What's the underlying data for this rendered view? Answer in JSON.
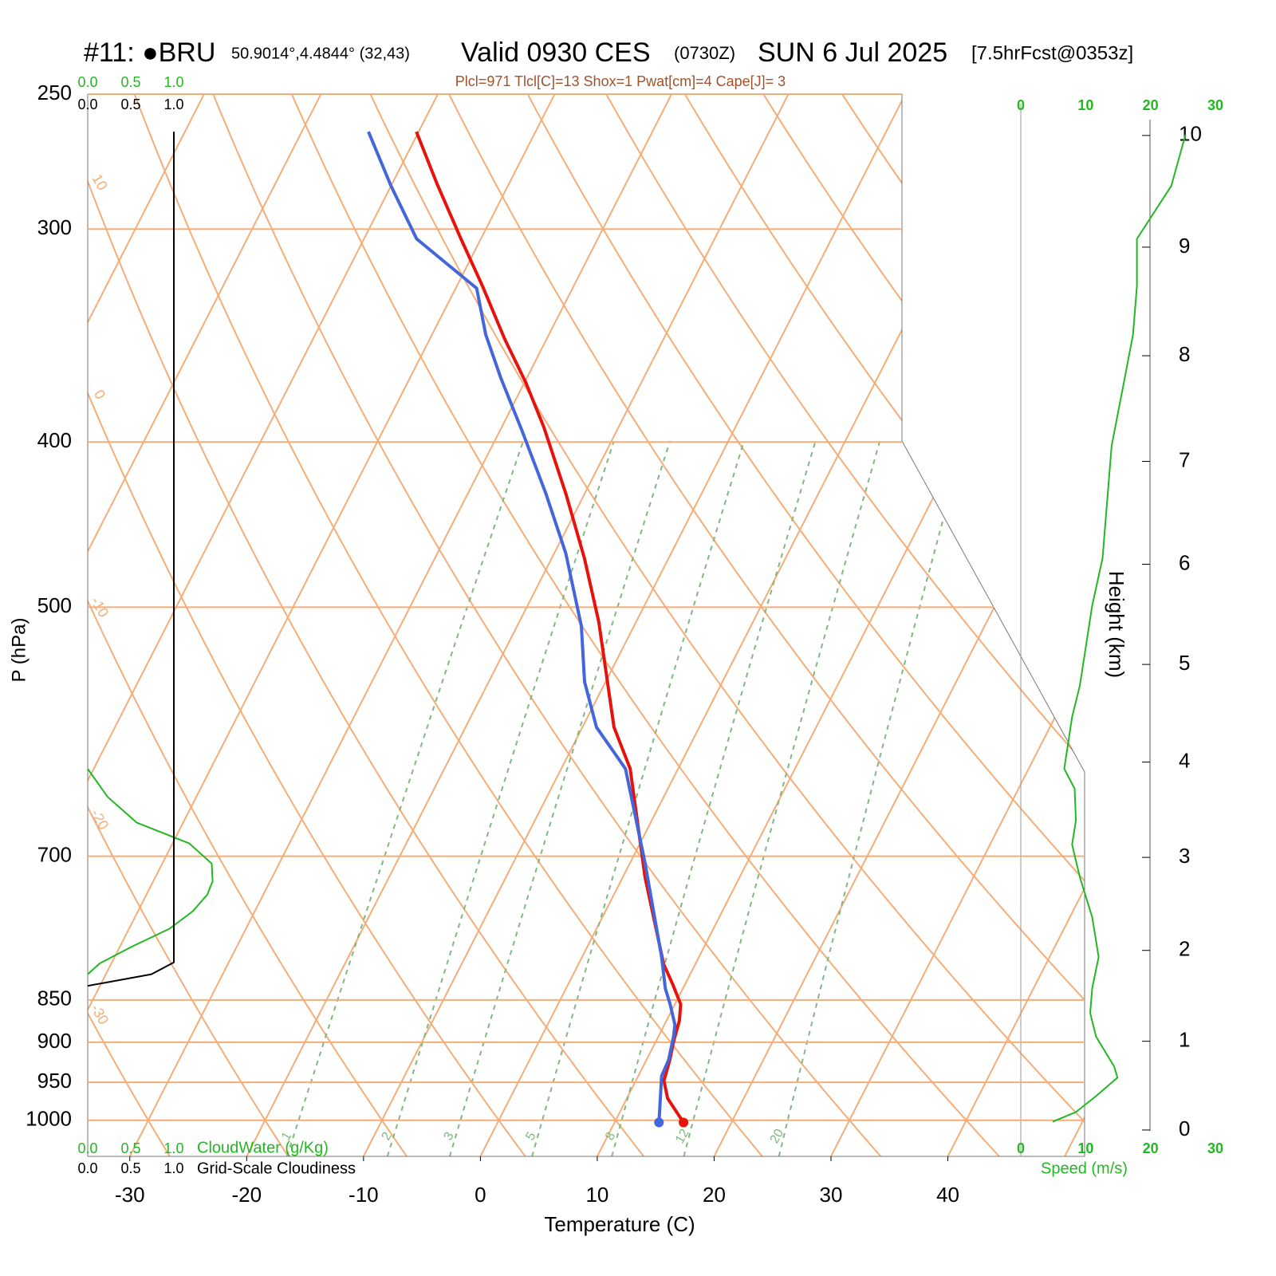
{
  "chart_data": {
    "type": "skewt",
    "title": {
      "station": "#11: ●BRU",
      "location": "50.9014°,4.4844° (32,43)",
      "valid": "Valid 0930 CES",
      "utc": "(0730Z)",
      "date": "SUN 6 Jul 2025",
      "forecast": "[7.5hrFcst@0353z]"
    },
    "subtitle": "Plcl=971 Tlcl[C]=13 Shox=1 Pwat[cm]=4 Cape[J]= 3",
    "x_label": "Temperature (C)",
    "y_label": "P (hPa)",
    "height_label": "Height (km)",
    "speed_label": "Speed (m/s)",
    "cloud_water_label": "CloudWater (g/Kg)",
    "cloudiness_label": "Grid-Scale Cloudiness",
    "xlim": [
      -33.6,
      51.7
    ],
    "xticks": [
      -30,
      -20,
      -10,
      0,
      10,
      20,
      30,
      40
    ],
    "ylim": [
      1050,
      250
    ],
    "yticks": [
      250,
      300,
      400,
      500,
      700,
      850,
      900,
      950,
      1000
    ],
    "log_y": true,
    "height_ticks": [
      0,
      1,
      2,
      3,
      4,
      5,
      6,
      7,
      8,
      9,
      10
    ],
    "speed_lim": [
      0,
      30
    ],
    "speed_ticks": [
      0,
      10,
      20,
      30
    ],
    "cloud_lim": [
      0,
      1
    ],
    "cloud_ticks": [
      {
        "value": 0,
        "label": "0.0"
      },
      {
        "value": 0.5,
        "label": "0.5"
      },
      {
        "value": 1,
        "label": "1.0"
      }
    ],
    "isotherms": [
      -80,
      -70,
      -60,
      -50,
      -40,
      -30,
      -20,
      -10,
      0,
      10,
      20,
      30,
      40,
      50
    ],
    "isotherm_color": "#f5ad78",
    "dry_adiabats": [
      -30,
      -20,
      -10,
      0,
      10,
      20,
      30,
      40,
      50,
      60,
      70,
      80,
      90,
      100,
      110,
      120
    ],
    "mixing_ratios": [
      1,
      2,
      3,
      5,
      8,
      12,
      20
    ],
    "mixing_ratio_color": "#80b880",
    "axis_color": "#22b822",
    "series": [
      {
        "color": "#e8120c",
        "pressure": [
          1003,
          971,
          948,
          922,
          898,
          874,
          855,
          833,
          810,
          720,
          622,
          588,
          510,
          468,
          429,
          392,
          369,
          348,
          324,
          304,
          282,
          263
        ],
        "values": [
          15.9,
          13.5,
          12.4,
          12.0,
          11.5,
          11.1,
          10.5,
          9.0,
          7.3,
          1.9,
          -4.1,
          -7.3,
          -13.2,
          -17.2,
          -21.6,
          -26.4,
          -29.9,
          -33.6,
          -37.8,
          -41.7,
          -46.2,
          -50.2
        ]
      },
      {
        "color": "#4466dd",
        "pressure": [
          1003,
          942,
          922,
          893,
          879,
          855,
          837,
          802,
          705,
          622,
          588,
          553,
          513,
          465,
          429,
          394,
          367,
          346,
          325,
          304,
          283,
          263
        ],
        "values": [
          13.8,
          12.0,
          11.9,
          11.3,
          10.9,
          9.6,
          8.5,
          6.8,
          1.2,
          -4.5,
          -8.8,
          -11.8,
          -14.5,
          -19.0,
          -23.3,
          -28.1,
          -32.2,
          -35.4,
          -38.2,
          -45.5,
          -50.0,
          -54.3
        ]
      }
    ],
    "cloud_water": {
      "color": "#22b822",
      "pressure": [
        622,
        646,
        669,
        688,
        707,
        724,
        737,
        754,
        772,
        791,
        809,
        821
      ],
      "values": [
        0,
        0.23,
        0.57,
        1.18,
        1.44,
        1.45,
        1.39,
        1.22,
        0.95,
        0.51,
        0.14,
        0
      ]
    },
    "cloudiness": {
      "color": "#000000",
      "pressure": [
        834,
        821,
        808,
        263
      ],
      "values": [
        0,
        0.74,
        1.0,
        1.0
      ]
    },
    "wind_speed": {
      "color": "#22b822",
      "pressure": [
        1002,
        989,
        968,
        944,
        930,
        893,
        865,
        837,
        802,
        760,
        720,
        689,
        667,
        639,
        622,
        580,
        556,
        499,
        468,
        402,
        369,
        346,
        324,
        304,
        283,
        264
      ],
      "values": [
        4.9,
        8.5,
        11.6,
        14.9,
        14.4,
        11.6,
        10.7,
        11.0,
        12.0,
        11.0,
        9.1,
        7.9,
        8.5,
        8.3,
        6.7,
        7.9,
        9.1,
        11.0,
        12.6,
        14.0,
        15.9,
        17.3,
        17.9,
        17.9,
        23.2,
        25.4
      ]
    }
  }
}
